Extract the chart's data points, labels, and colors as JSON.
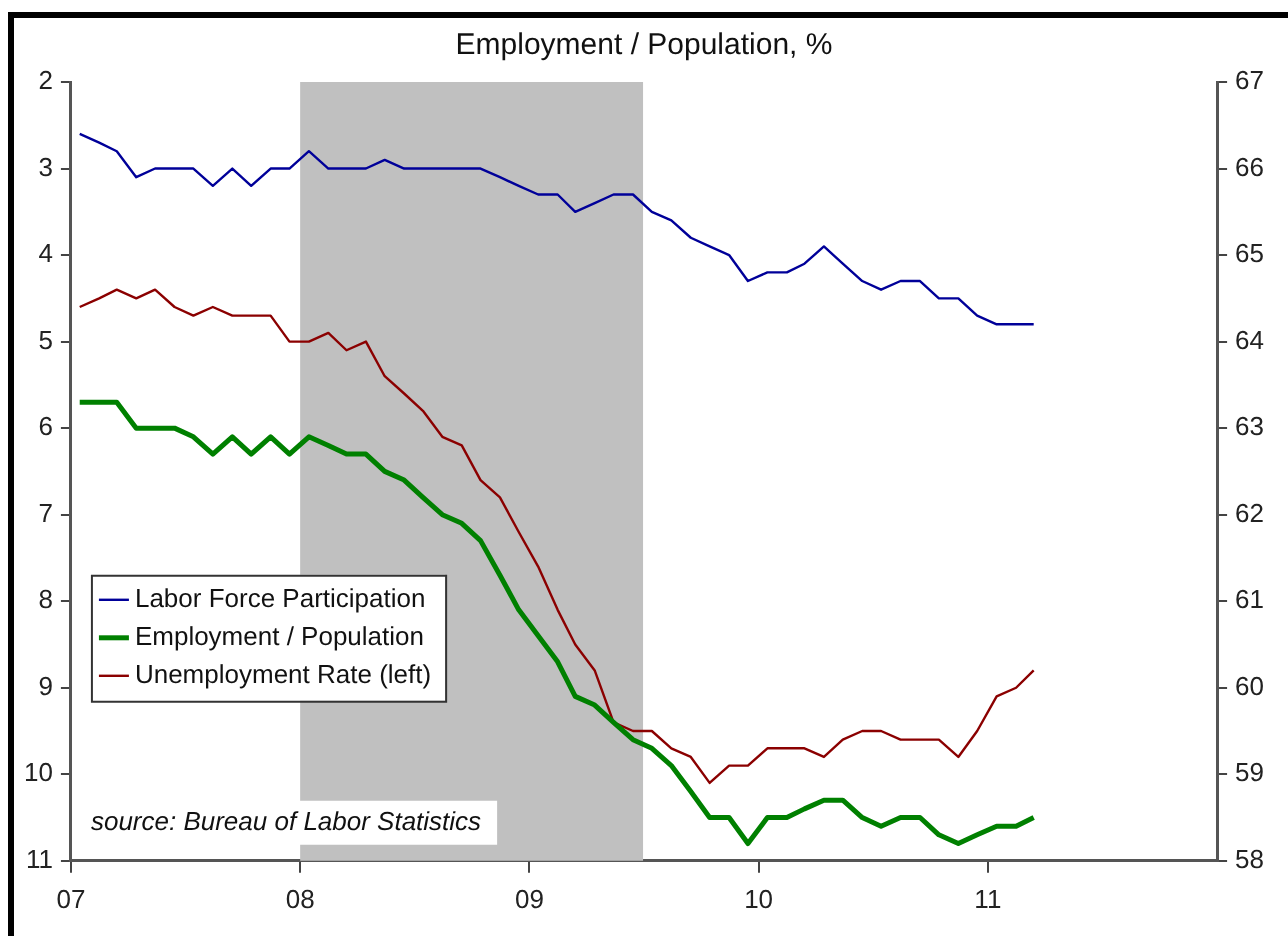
{
  "chart_data": {
    "type": "line",
    "title": "Employment / Population, %",
    "x": [
      "2007-01-15",
      "2007-02-15",
      "2007-03-15",
      "2007-04-15",
      "2007-05-15",
      "2007-06-15",
      "2007-07-15",
      "2007-08-15",
      "2007-09-15",
      "2007-10-15",
      "2007-11-15",
      "2007-12-15",
      "2008-01-15",
      "2008-02-15",
      "2008-03-15",
      "2008-04-15",
      "2008-05-15",
      "2008-06-15",
      "2008-07-15",
      "2008-08-15",
      "2008-09-15",
      "2008-10-15",
      "2008-11-15",
      "2008-12-15",
      "2009-01-15",
      "2009-02-15",
      "2009-03-15",
      "2009-04-15",
      "2009-05-15",
      "2009-06-15",
      "2009-07-15",
      "2009-08-15",
      "2009-09-15",
      "2009-10-15",
      "2009-11-15",
      "2009-12-15",
      "2010-01-15",
      "2010-02-15",
      "2010-03-15",
      "2010-04-15",
      "2010-05-15",
      "2010-06-15",
      "2010-07-15",
      "2010-08-15",
      "2010-09-15",
      "2010-10-15",
      "2010-11-15",
      "2010-12-15",
      "2011-01-15",
      "2011-02-15",
      "2011-03-15"
    ],
    "series": [
      {
        "name": "Labor Force Participation",
        "color": "#000099",
        "axis": "y2",
        "values": [
          66.4,
          66.3,
          66.2,
          65.9,
          66.0,
          66.0,
          66.0,
          65.8,
          66.0,
          65.8,
          66.0,
          66.0,
          66.2,
          66.0,
          66.0,
          66.0,
          66.1,
          66.0,
          66.0,
          66.0,
          66.0,
          66.0,
          65.9,
          65.8,
          65.7,
          65.7,
          65.5,
          65.6,
          65.7,
          65.7,
          65.5,
          65.4,
          65.2,
          65.1,
          65.0,
          64.7,
          64.8,
          64.8,
          64.9,
          65.1,
          64.9,
          64.7,
          64.6,
          64.7,
          64.7,
          64.5,
          64.5,
          64.3,
          64.2,
          64.2,
          64.2
        ]
      },
      {
        "name": "Employment / Population",
        "color": "#008000",
        "axis": "y2",
        "values": [
          63.3,
          63.3,
          63.3,
          63.0,
          63.0,
          63.0,
          62.9,
          62.7,
          62.9,
          62.7,
          62.9,
          62.7,
          62.9,
          62.8,
          62.7,
          62.7,
          62.5,
          62.4,
          62.2,
          62.0,
          61.9,
          61.7,
          61.3,
          60.9,
          60.6,
          60.3,
          59.9,
          59.8,
          59.6,
          59.4,
          59.3,
          59.1,
          58.8,
          58.5,
          58.5,
          58.2,
          58.5,
          58.5,
          58.6,
          58.7,
          58.7,
          58.5,
          58.4,
          58.5,
          58.5,
          58.3,
          58.2,
          58.3,
          58.4,
          58.4,
          58.5
        ]
      },
      {
        "name": "Unemployment Rate (left)",
        "color": "#8b0000",
        "axis": "y",
        "values": [
          4.6,
          4.5,
          4.4,
          4.5,
          4.4,
          4.6,
          4.7,
          4.6,
          4.7,
          4.7,
          4.7,
          5.0,
          5.0,
          4.9,
          5.1,
          5.0,
          5.4,
          5.6,
          5.8,
          6.1,
          6.2,
          6.6,
          6.8,
          7.2,
          7.6,
          8.1,
          8.5,
          8.8,
          9.4,
          9.5,
          9.5,
          9.7,
          9.8,
          10.1,
          9.9,
          9.9,
          9.7,
          9.7,
          9.7,
          9.8,
          9.6,
          9.5,
          9.5,
          9.6,
          9.6,
          9.6,
          9.8,
          9.5,
          9.1,
          9.0,
          8.8
        ]
      }
    ],
    "xlim": [
      "2007-01-01",
      "2012-01-01"
    ],
    "xticks": [
      {
        "value": "2007-01-01",
        "label": "07"
      },
      {
        "value": "2008-01-01",
        "label": "08"
      },
      {
        "value": "2009-01-01",
        "label": "09"
      },
      {
        "value": "2010-01-01",
        "label": "10"
      },
      {
        "value": "2011-01-01",
        "label": "11"
      }
    ],
    "ylim": [
      11,
      2
    ],
    "yticks": [
      2,
      3,
      4,
      5,
      6,
      7,
      8,
      9,
      10,
      11
    ],
    "y2lim": [
      58,
      67
    ],
    "y2ticks": [
      58,
      59,
      60,
      61,
      62,
      63,
      64,
      65,
      66,
      67
    ],
    "bands": [
      {
        "axis": "x",
        "from": "2008-01-01",
        "to": "2009-07-01",
        "color": "#c0c0c0"
      }
    ],
    "annotations": [
      "source: Bureau of Labor Statistics"
    ],
    "legend": "bottom left"
  }
}
